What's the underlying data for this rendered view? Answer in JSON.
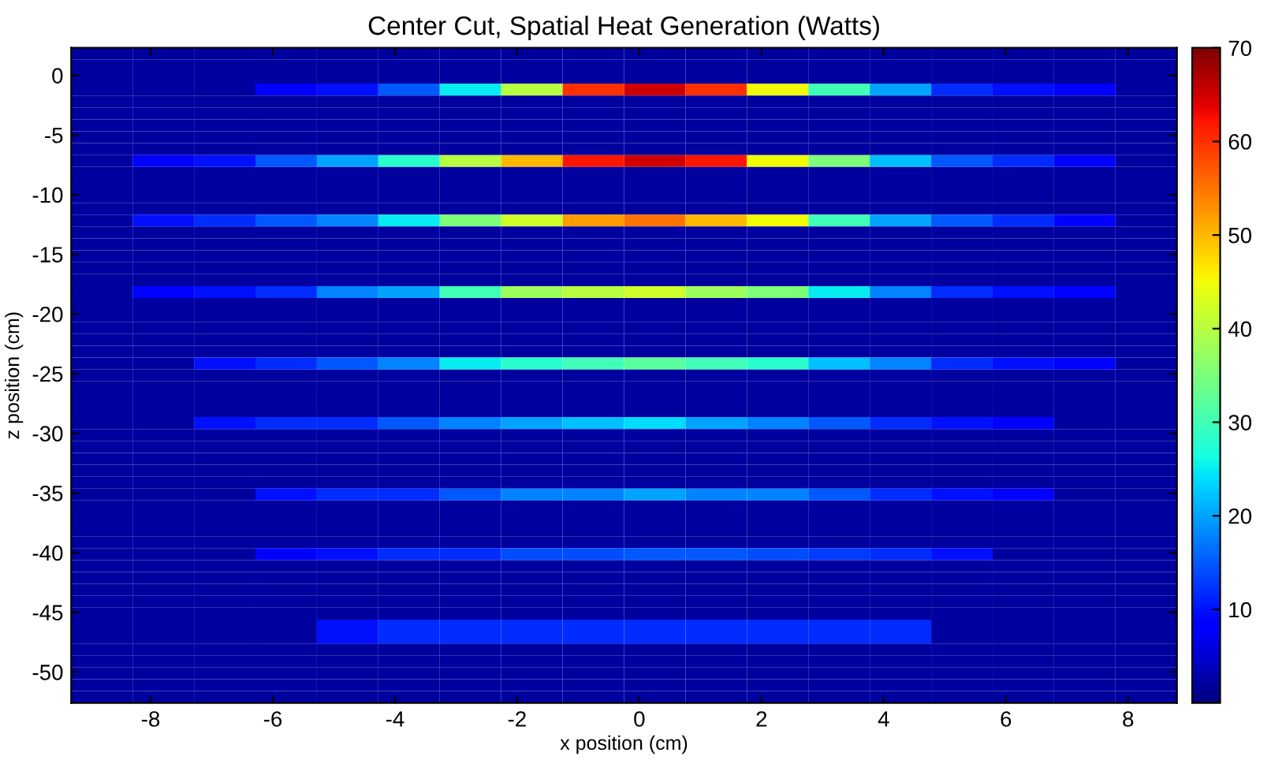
{
  "chart_data": {
    "type": "heatmap",
    "title": "Center Cut, Spatial Heat Generation (Watts)",
    "xlabel": "x position (cm)",
    "ylabel": "z position (cm)",
    "xlim": [
      -9.3,
      8.8
    ],
    "ylim": [
      -52.6,
      2.3
    ],
    "xticks": [
      -8,
      -6,
      -4,
      -2,
      0,
      2,
      4,
      6,
      8
    ],
    "yticks": [
      0,
      -5,
      -10,
      -15,
      -20,
      -25,
      -30,
      -35,
      -40,
      -45,
      -50
    ],
    "clim": [
      0,
      70
    ],
    "cticks": [
      10,
      20,
      30,
      40,
      50,
      60,
      70
    ],
    "cells": [
      [
        2,
        2,
        2,
        2,
        2,
        2,
        2,
        2,
        2,
        2,
        2,
        2,
        2,
        2,
        2,
        2,
        2,
        2
      ],
      [
        2,
        2,
        2,
        2,
        2,
        2,
        2,
        2,
        2,
        2,
        2,
        2,
        2,
        2,
        2,
        2,
        2,
        2
      ],
      [
        2,
        2,
        2,
        2,
        2,
        2,
        2,
        2,
        2,
        2,
        2,
        2,
        2,
        2,
        2,
        2,
        2,
        2
      ],
      [
        2,
        2,
        2,
        8,
        10,
        15,
        25,
        40,
        60,
        65,
        60,
        45,
        30,
        20,
        12,
        10,
        8,
        2
      ],
      [
        2,
        2,
        2,
        2,
        2,
        2,
        2,
        2,
        2,
        2,
        2,
        2,
        2,
        2,
        2,
        2,
        2,
        2
      ],
      [
        2,
        2,
        2,
        2,
        2,
        2,
        2,
        2,
        2,
        2,
        2,
        2,
        2,
        2,
        2,
        2,
        2,
        2
      ],
      [
        2,
        2,
        2,
        2,
        2,
        2,
        2,
        2,
        2,
        2,
        2,
        2,
        2,
        2,
        2,
        2,
        2,
        2
      ],
      [
        2,
        2,
        2,
        2,
        2,
        2,
        2,
        2,
        2,
        2,
        2,
        2,
        2,
        2,
        2,
        2,
        2,
        2
      ],
      [
        2,
        2,
        2,
        2,
        2,
        2,
        2,
        2,
        2,
        2,
        2,
        2,
        2,
        2,
        2,
        2,
        2,
        2
      ],
      [
        2,
        8,
        10,
        15,
        20,
        28,
        40,
        50,
        62,
        65,
        62,
        45,
        35,
        22,
        15,
        12,
        8,
        2
      ],
      [
        2,
        2,
        2,
        2,
        2,
        2,
        2,
        2,
        2,
        2,
        2,
        2,
        2,
        2,
        2,
        2,
        2,
        2
      ],
      [
        2,
        2,
        2,
        2,
        2,
        2,
        2,
        2,
        2,
        2,
        2,
        2,
        2,
        2,
        2,
        2,
        2,
        2
      ],
      [
        2,
        2,
        2,
        2,
        2,
        2,
        2,
        2,
        2,
        2,
        2,
        2,
        2,
        2,
        2,
        2,
        2,
        2
      ],
      [
        2,
        2,
        2,
        2,
        2,
        2,
        2,
        2,
        2,
        2,
        2,
        2,
        2,
        2,
        2,
        2,
        2,
        2
      ],
      [
        2,
        10,
        12,
        15,
        18,
        25,
        35,
        42,
        52,
        55,
        50,
        45,
        30,
        20,
        15,
        12,
        8,
        2
      ],
      [
        2,
        2,
        2,
        2,
        2,
        2,
        2,
        2,
        2,
        2,
        2,
        2,
        2,
        2,
        2,
        2,
        2,
        2
      ],
      [
        2,
        2,
        2,
        2,
        2,
        2,
        2,
        2,
        2,
        2,
        2,
        2,
        2,
        2,
        2,
        2,
        2,
        2
      ],
      [
        2,
        2,
        2,
        2,
        2,
        2,
        2,
        2,
        2,
        2,
        2,
        2,
        2,
        2,
        2,
        2,
        2,
        2
      ],
      [
        2,
        2,
        2,
        2,
        2,
        2,
        2,
        2,
        2,
        2,
        2,
        2,
        2,
        2,
        2,
        2,
        2,
        2
      ],
      [
        2,
        2,
        2,
        2,
        2,
        2,
        2,
        2,
        2,
        2,
        2,
        2,
        2,
        2,
        2,
        2,
        2,
        2
      ],
      [
        2,
        8,
        10,
        12,
        18,
        20,
        30,
        38,
        40,
        42,
        38,
        35,
        25,
        18,
        12,
        10,
        8,
        2
      ],
      [
        2,
        2,
        2,
        2,
        2,
        2,
        2,
        2,
        2,
        2,
        2,
        2,
        2,
        2,
        2,
        2,
        2,
        2
      ],
      [
        2,
        2,
        2,
        2,
        2,
        2,
        2,
        2,
        2,
        2,
        2,
        2,
        2,
        2,
        2,
        2,
        2,
        2
      ],
      [
        2,
        2,
        2,
        2,
        2,
        2,
        2,
        2,
        2,
        2,
        2,
        2,
        2,
        2,
        2,
        2,
        2,
        2
      ],
      [
        2,
        2,
        2,
        2,
        2,
        2,
        2,
        2,
        2,
        2,
        2,
        2,
        2,
        2,
        2,
        2,
        2,
        2
      ],
      [
        2,
        2,
        2,
        2,
        2,
        2,
        2,
        2,
        2,
        2,
        2,
        2,
        2,
        2,
        2,
        2,
        2,
        2
      ],
      [
        2,
        2,
        10,
        12,
        15,
        18,
        25,
        28,
        30,
        32,
        30,
        28,
        22,
        18,
        12,
        10,
        8,
        2
      ],
      [
        2,
        2,
        2,
        2,
        2,
        2,
        2,
        2,
        2,
        2,
        2,
        2,
        2,
        2,
        2,
        2,
        2,
        2
      ],
      [
        2,
        2,
        2,
        2,
        2,
        2,
        2,
        2,
        2,
        2,
        2,
        2,
        2,
        2,
        2,
        2,
        2,
        2
      ],
      [
        2,
        2,
        2,
        2,
        2,
        2,
        2,
        2,
        2,
        2,
        2,
        2,
        2,
        2,
        2,
        2,
        2,
        2
      ],
      [
        2,
        2,
        2,
        2,
        2,
        2,
        2,
        2,
        2,
        2,
        2,
        2,
        2,
        2,
        2,
        2,
        2,
        2
      ],
      [
        2,
        2,
        10,
        12,
        12,
        15,
        18,
        20,
        22,
        24,
        20,
        18,
        15,
        12,
        10,
        8,
        2,
        2
      ],
      [
        2,
        2,
        2,
        2,
        2,
        2,
        2,
        2,
        2,
        2,
        2,
        2,
        2,
        2,
        2,
        2,
        2,
        2
      ],
      [
        2,
        2,
        2,
        2,
        2,
        2,
        2,
        2,
        2,
        2,
        2,
        2,
        2,
        2,
        2,
        2,
        2,
        2
      ],
      [
        2,
        2,
        2,
        2,
        2,
        2,
        2,
        2,
        2,
        2,
        2,
        2,
        2,
        2,
        2,
        2,
        2,
        2
      ],
      [
        2,
        2,
        2,
        2,
        2,
        2,
        2,
        2,
        2,
        2,
        2,
        2,
        2,
        2,
        2,
        2,
        2,
        2
      ],
      [
        2,
        2,
        2,
        2,
        2,
        2,
        2,
        2,
        2,
        2,
        2,
        2,
        2,
        2,
        2,
        2,
        2,
        2
      ],
      [
        2,
        2,
        2,
        10,
        12,
        12,
        15,
        18,
        18,
        20,
        18,
        18,
        15,
        12,
        10,
        8,
        2,
        2
      ],
      [
        2,
        2,
        2,
        2,
        2,
        2,
        2,
        2,
        2,
        2,
        2,
        2,
        2,
        2,
        2,
        2,
        2,
        2
      ],
      [
        2,
        2,
        2,
        2,
        2,
        2,
        2,
        2,
        2,
        2,
        2,
        2,
        2,
        2,
        2,
        2,
        2,
        2
      ],
      [
        2,
        2,
        2,
        2,
        2,
        2,
        2,
        2,
        2,
        2,
        2,
        2,
        2,
        2,
        2,
        2,
        2,
        2
      ],
      [
        2,
        2,
        2,
        2,
        2,
        2,
        2,
        2,
        2,
        2,
        2,
        2,
        2,
        2,
        2,
        2,
        2,
        2
      ],
      [
        2,
        2,
        2,
        8,
        10,
        12,
        12,
        14,
        14,
        15,
        15,
        14,
        13,
        12,
        10,
        2,
        2,
        2
      ],
      [
        2,
        2,
        2,
        2,
        2,
        2,
        2,
        2,
        2,
        2,
        2,
        2,
        2,
        2,
        2,
        2,
        2,
        2
      ],
      [
        2,
        2,
        2,
        2,
        2,
        2,
        2,
        2,
        2,
        2,
        2,
        2,
        2,
        2,
        2,
        2,
        2,
        2
      ],
      [
        2,
        2,
        2,
        2,
        2,
        2,
        2,
        2,
        2,
        2,
        2,
        2,
        2,
        2,
        2,
        2,
        2,
        2
      ],
      [
        2,
        2,
        2,
        2,
        2,
        2,
        2,
        2,
        2,
        2,
        2,
        2,
        2,
        2,
        2,
        2,
        2,
        2
      ],
      [
        2,
        2,
        2,
        2,
        2,
        2,
        2,
        2,
        2,
        2,
        2,
        2,
        2,
        2,
        2,
        2,
        2,
        2
      ],
      [
        2,
        2,
        2,
        2,
        10,
        12,
        12,
        12,
        12,
        12,
        12,
        12,
        12,
        12,
        2,
        2,
        2,
        2
      ],
      [
        2,
        2,
        2,
        2,
        10,
        12,
        12,
        12,
        12,
        12,
        12,
        12,
        12,
        12,
        2,
        2,
        2,
        2
      ],
      [
        2,
        2,
        2,
        2,
        2,
        2,
        2,
        2,
        2,
        2,
        2,
        2,
        2,
        2,
        2,
        2,
        2,
        2
      ],
      [
        2,
        2,
        2,
        2,
        2,
        2,
        2,
        2,
        2,
        2,
        2,
        2,
        2,
        2,
        2,
        2,
        2,
        2
      ],
      [
        2,
        2,
        2,
        2,
        2,
        2,
        2,
        2,
        2,
        2,
        2,
        2,
        2,
        2,
        2,
        2,
        2,
        2
      ],
      [
        2,
        2,
        2,
        2,
        2,
        2,
        2,
        2,
        2,
        2,
        2,
        2,
        2,
        2,
        2,
        2,
        2,
        2
      ],
      [
        2,
        2,
        2,
        2,
        2,
        2,
        2,
        2,
        2,
        2,
        2,
        2,
        2,
        2,
        2,
        2,
        2,
        2
      ]
    ]
  }
}
